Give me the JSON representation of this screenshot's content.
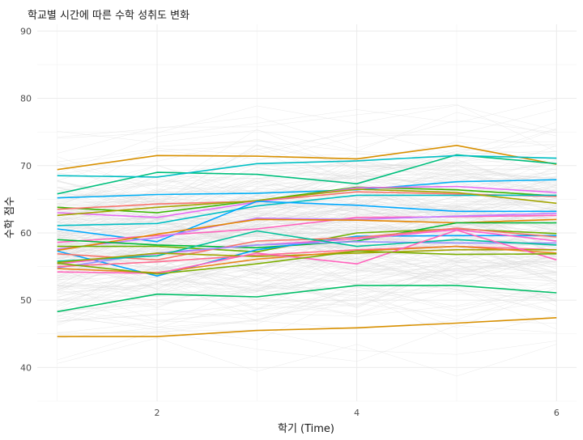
{
  "chart_data": {
    "type": "line",
    "title": "학교별 시간에 따른 수학 성취도 변화",
    "xlabel": "학기 (Time)",
    "ylabel": "수학 점수",
    "x": [
      1,
      2,
      3,
      4,
      5,
      6
    ],
    "xlim": [
      0.8,
      6.2
    ],
    "ylim": [
      35,
      91
    ],
    "xticks": [
      2,
      4,
      6
    ],
    "yticks": [
      40,
      50,
      60,
      70,
      80,
      90
    ],
    "grid": true,
    "legend": "none",
    "background_lines": {
      "description_color": "#d9d9d9",
      "band_center": [
        58,
        59,
        60,
        60.5,
        61,
        61
      ],
      "band_spread": [
        20,
        20,
        21,
        22,
        22,
        22
      ]
    },
    "series": [
      {
        "color": "#D89000",
        "values": [
          69.4,
          71.5,
          71.4,
          71.0,
          73.0,
          70.2
        ]
      },
      {
        "color": "#00BF7D",
        "values": [
          65.8,
          69.0,
          68.7,
          67.3,
          71.6,
          70.3
        ]
      },
      {
        "color": "#00BFC4",
        "values": [
          68.5,
          68.3,
          70.3,
          70.7,
          71.5,
          71.1
        ]
      },
      {
        "color": "#00B0F6",
        "values": [
          65.2,
          65.7,
          65.9,
          66.4,
          67.6,
          67.9
        ]
      },
      {
        "color": "#39B600",
        "values": [
          63.8,
          63.0,
          64.8,
          66.8,
          66.4,
          65.5
        ]
      },
      {
        "color": "#F8766D",
        "values": [
          63.5,
          64.3,
          64.7,
          66.1,
          65.8,
          65.4
        ]
      },
      {
        "color": "#E76BF3",
        "values": [
          63.0,
          62.3,
          64.6,
          66.7,
          66.9,
          66.0
        ]
      },
      {
        "color": "#00BFC4",
        "values": [
          61.1,
          61.4,
          64.0,
          65.6,
          65.6,
          65.6
        ]
      },
      {
        "color": "#A3A500",
        "values": [
          62.6,
          63.8,
          64.8,
          66.5,
          66.0,
          64.4
        ]
      },
      {
        "color": "#00A9FF",
        "values": [
          60.6,
          58.7,
          64.7,
          64.1,
          63.2,
          63.2
        ]
      },
      {
        "color": "#FF62BC",
        "values": [
          58.6,
          59.6,
          60.6,
          62.3,
          62.4,
          62.6
        ]
      },
      {
        "color": "#C77CFF",
        "values": [
          57.6,
          59.3,
          62.2,
          62.0,
          62.5,
          62.9
        ]
      },
      {
        "color": "#E58700",
        "values": [
          57.4,
          59.8,
          62.0,
          61.9,
          61.5,
          62.0
        ]
      },
      {
        "color": "#00BA38",
        "values": [
          59.0,
          58.2,
          57.8,
          58.8,
          61.5,
          61.5
        ]
      },
      {
        "color": "#6BB100",
        "values": [
          58.0,
          58.0,
          57.2,
          60.0,
          60.6,
          59.9
        ]
      },
      {
        "color": "#00A5FF",
        "values": [
          57.3,
          53.6,
          57.5,
          59.5,
          59.6,
          59.6
        ]
      },
      {
        "color": "#FD61D1",
        "values": [
          55.4,
          56.9,
          58.2,
          59.1,
          60.5,
          58.8
        ]
      },
      {
        "color": "#F8766D",
        "values": [
          56.9,
          56.0,
          58.8,
          59.3,
          60.7,
          59.4
        ]
      },
      {
        "color": "#9590FF",
        "values": [
          54.8,
          57.0,
          58.2,
          58.7,
          58.5,
          58.5
        ]
      },
      {
        "color": "#00C19A",
        "values": [
          55.8,
          56.6,
          60.3,
          58.0,
          59.0,
          58.2
        ]
      },
      {
        "color": "#FF6C91",
        "values": [
          55.0,
          55.7,
          56.7,
          57.5,
          58.0,
          57.5
        ]
      },
      {
        "color": "#A3A500",
        "values": [
          55.6,
          57.0,
          56.5,
          57.0,
          57.5,
          57.5
        ]
      },
      {
        "color": "#E7861B",
        "values": [
          54.7,
          54.1,
          56.1,
          57.3,
          58.0,
          57.0
        ]
      },
      {
        "color": "#FF62BC",
        "values": [
          54.2,
          54.0,
          57.0,
          55.4,
          60.4,
          56.0
        ]
      },
      {
        "color": "#7CAE00",
        "values": [
          55.5,
          53.9,
          55.4,
          57.3,
          56.8,
          56.9
        ]
      },
      {
        "color": "#00BE67",
        "values": [
          48.3,
          50.9,
          50.5,
          52.2,
          52.2,
          51.1
        ]
      },
      {
        "color": "#D89000",
        "values": [
          44.6,
          44.6,
          45.5,
          45.9,
          46.6,
          47.4
        ]
      }
    ]
  }
}
